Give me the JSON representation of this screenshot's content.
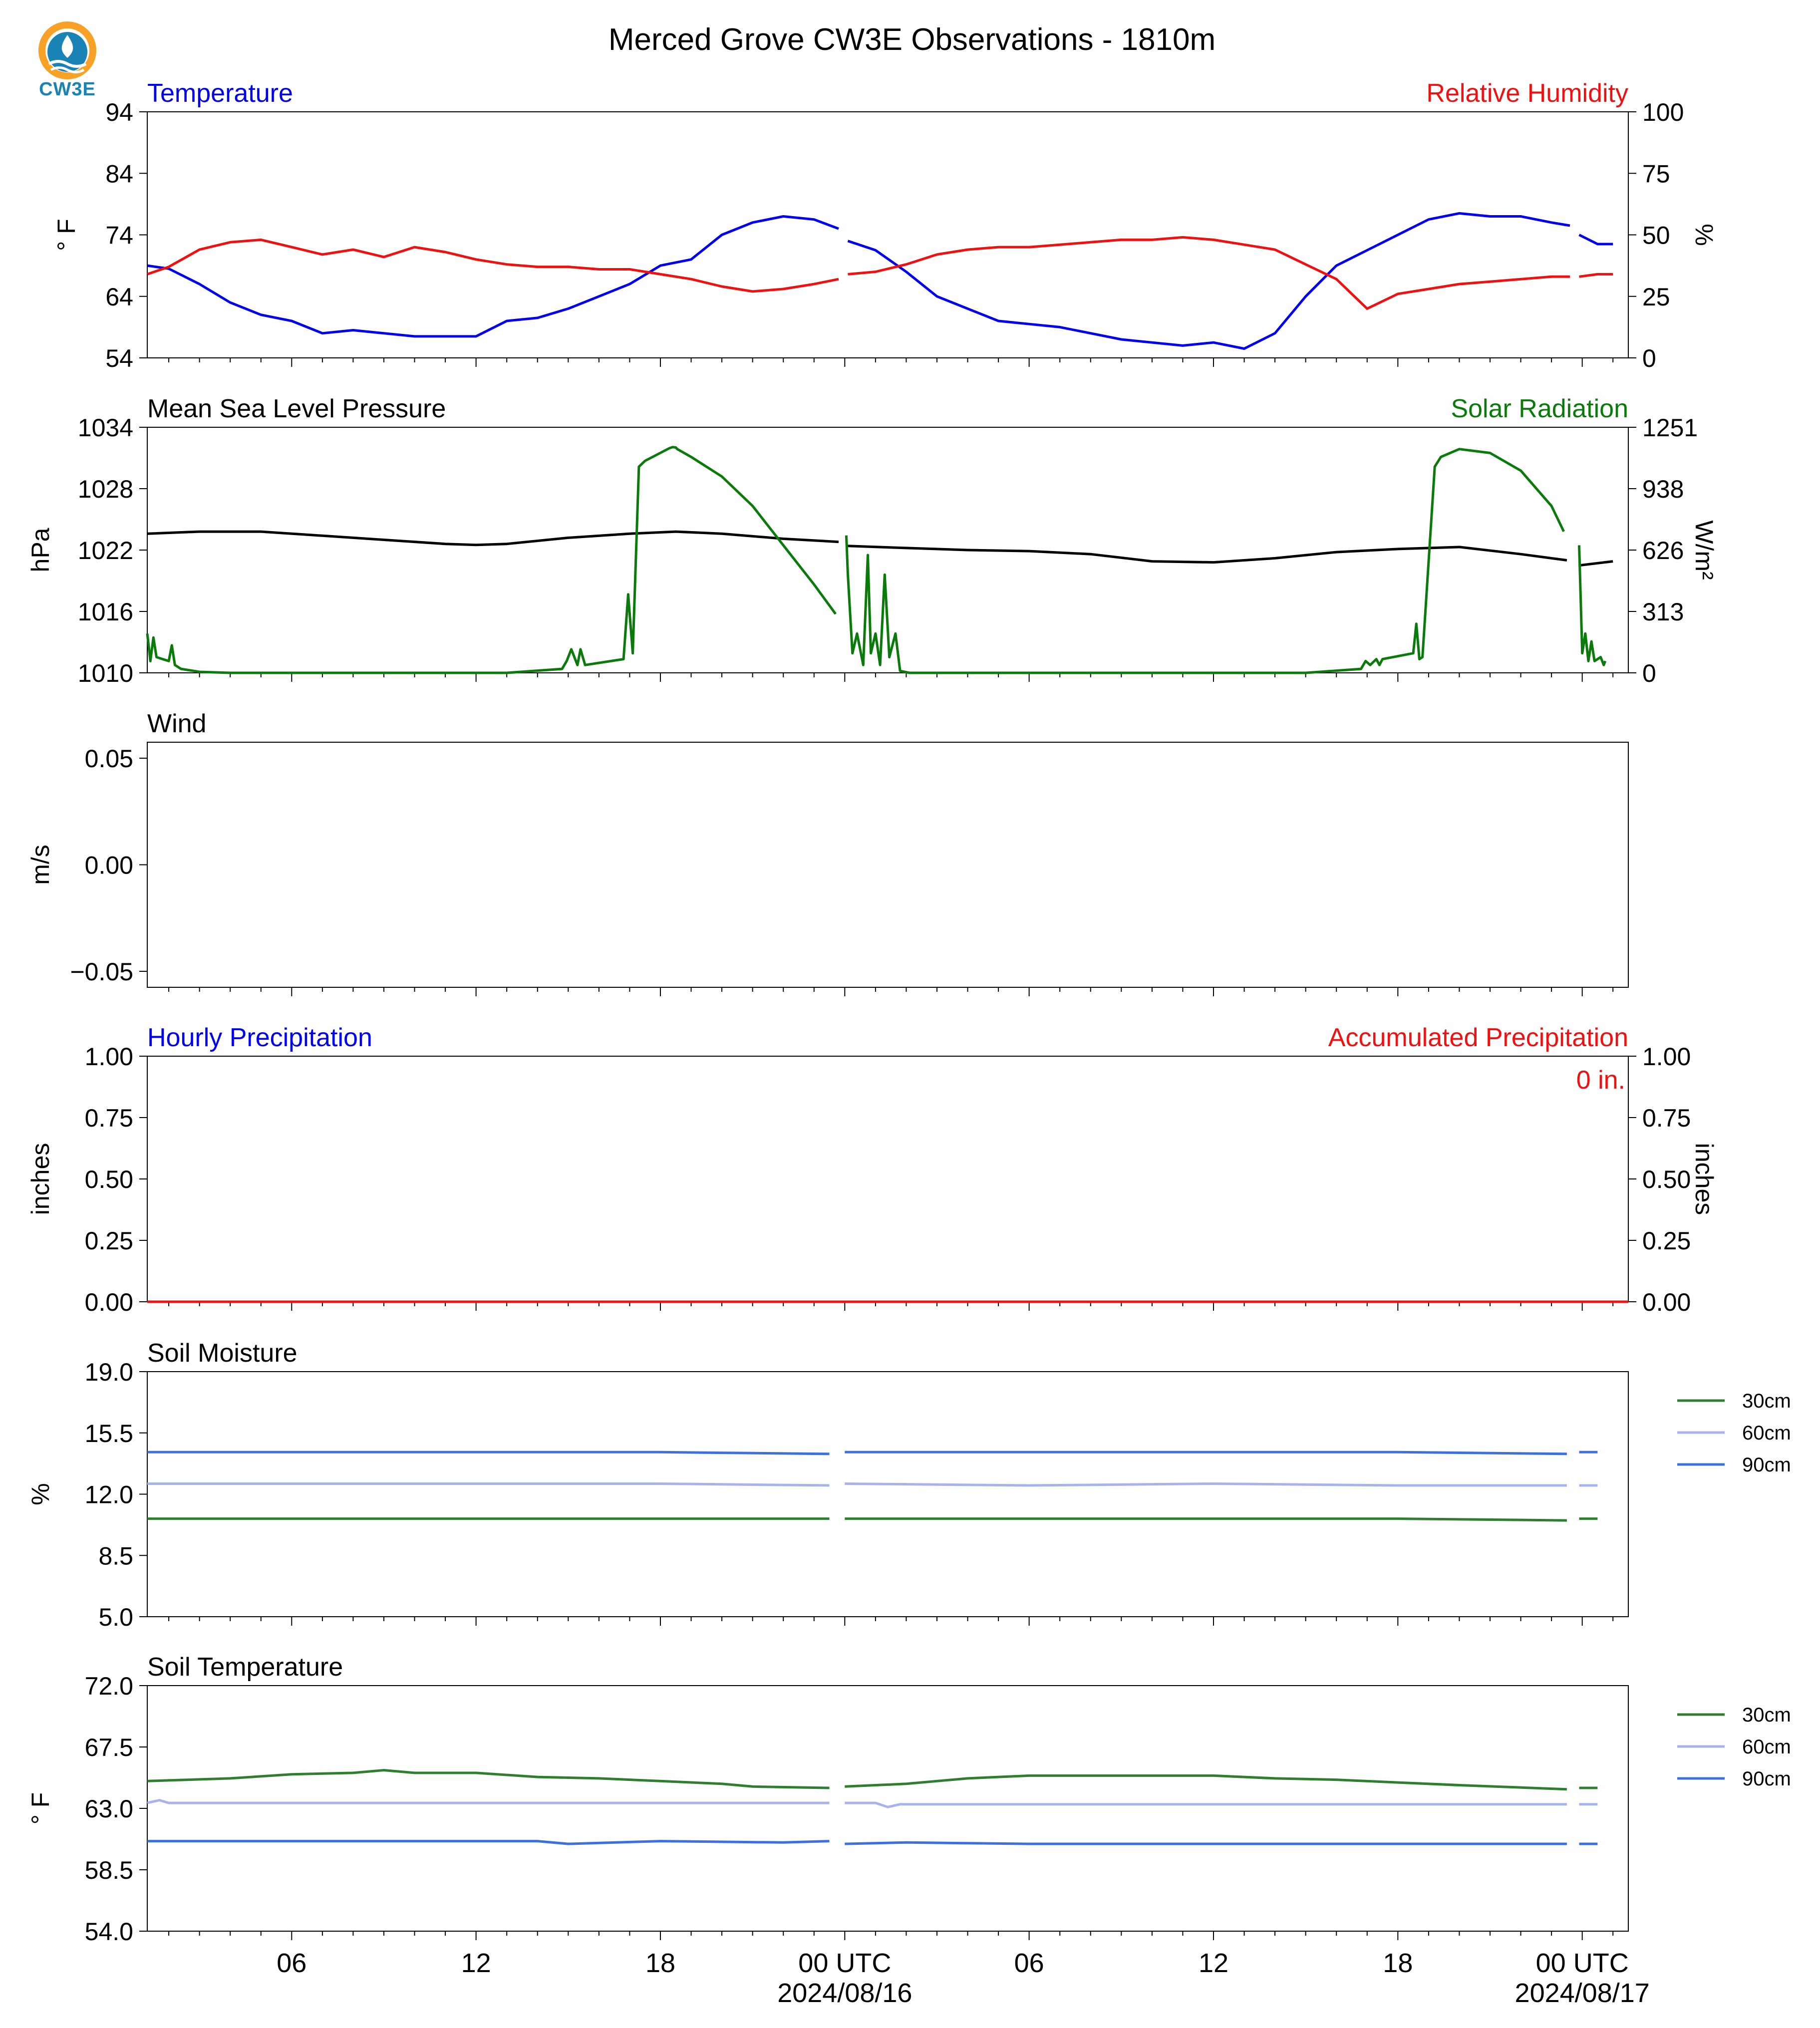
{
  "title": "Merced Grove CW3E Observations - 1810m",
  "logo_text": "CW3E",
  "colors": {
    "temperature": "#0000ee",
    "humidity": "#ee1111",
    "pressure": "#000000",
    "solar": "#0a7a0a",
    "soil_30": "#2f7d2f",
    "soil_60": "#a8b3ec",
    "soil_90": "#3c6fe0",
    "accum": "#ee1111"
  },
  "x_axis": {
    "hours_range": [
      -4.7,
      43.5
    ],
    "tick_labels": [
      {
        "hour": 0,
        "label": "06"
      },
      {
        "hour": 6,
        "label": "12"
      },
      {
        "hour": 12,
        "label": "18"
      },
      {
        "hour": 18,
        "label": "00 UTC",
        "date": "2024/08/16"
      },
      {
        "hour": 24,
        "label": "06"
      },
      {
        "hour": 30,
        "label": "12"
      },
      {
        "hour": 36,
        "label": "18"
      },
      {
        "hour": 42,
        "label": "00 UTC",
        "date": "2024/08/17"
      }
    ]
  },
  "chart_data": [
    {
      "id": "temp_rh",
      "type": "line",
      "title_left": "Temperature",
      "title_right": "Relative Humidity",
      "ylabel_left": "° F",
      "ylabel_right": "%",
      "ylim_left": [
        54,
        94
      ],
      "ylim_right": [
        0,
        100
      ],
      "yticks_left": [
        "54",
        "64",
        "74",
        "84",
        "94"
      ],
      "yticks_right": [
        "0",
        "25",
        "50",
        "75",
        "100"
      ],
      "series": [
        {
          "name": "Temperature",
          "axis": "left",
          "color_key": "temperature",
          "x": [
            -4.7,
            -4,
            -3,
            -2,
            -1,
            0,
            1,
            2,
            3,
            4,
            5,
            6,
            7,
            8,
            9,
            10,
            11,
            12,
            13,
            14,
            15,
            16,
            17,
            17.8,
            null,
            18.1,
            19,
            20,
            21,
            22,
            23,
            24,
            25,
            26,
            27,
            28,
            29,
            30,
            31,
            32,
            33,
            34,
            35,
            36,
            37,
            38,
            39,
            40,
            41,
            41.6,
            null,
            41.9,
            42.5,
            43
          ],
          "y": [
            69,
            68.5,
            66,
            63,
            61,
            60,
            58,
            58.5,
            58,
            57.5,
            57.5,
            57.5,
            60,
            60.5,
            62,
            64,
            66,
            69,
            70,
            74,
            76,
            77,
            76.5,
            75,
            null,
            73,
            71.5,
            68,
            64,
            62,
            60,
            59.5,
            59,
            58,
            57,
            56.5,
            56,
            56.5,
            55.5,
            58,
            64,
            69,
            71.5,
            74,
            76.5,
            77.5,
            77,
            77,
            76,
            75.5,
            null,
            74,
            72.5,
            72.5
          ]
        },
        {
          "name": "Relative Humidity",
          "axis": "right",
          "color_key": "humidity",
          "x": [
            -4.7,
            -4,
            -3,
            -2,
            -1,
            0,
            1,
            2,
            3,
            4,
            5,
            6,
            7,
            8,
            9,
            10,
            11,
            12,
            13,
            14,
            15,
            16,
            17,
            17.8,
            null,
            18.1,
            19,
            20,
            21,
            22,
            23,
            24,
            25,
            26,
            27,
            28,
            29,
            30,
            31,
            32,
            33,
            34,
            35,
            36,
            37,
            38,
            39,
            40,
            41,
            41.6,
            null,
            41.9,
            42.5,
            43
          ],
          "y": [
            34,
            37,
            44,
            47,
            48,
            45,
            42,
            44,
            41,
            45,
            43,
            40,
            38,
            37,
            37,
            36,
            36,
            34,
            32,
            29,
            27,
            28,
            30,
            32,
            null,
            34,
            35,
            38,
            42,
            44,
            45,
            45,
            46,
            47,
            48,
            48,
            49,
            48,
            46,
            44,
            38,
            32,
            20,
            26,
            28,
            30,
            31,
            32,
            33,
            33,
            null,
            33,
            34,
            34
          ]
        }
      ]
    },
    {
      "id": "pressure_solar",
      "type": "line",
      "title_left": "Mean Sea Level Pressure",
      "title_right": "Solar Radiation",
      "ylabel_left": "hPa",
      "ylabel_right": "W/m²",
      "ylim_left": [
        1010,
        1034
      ],
      "ylim_right": [
        0,
        1251
      ],
      "yticks_left": [
        "1010",
        "1016",
        "1022",
        "1028",
        "1034"
      ],
      "yticks_right": [
        "0",
        "313",
        "626",
        "938",
        "1251"
      ],
      "series": [
        {
          "name": "Mean Sea Level Pressure",
          "axis": "left",
          "color_key": "pressure",
          "x": [
            -4.7,
            -3,
            -1,
            1,
            3,
            5,
            6,
            7,
            9,
            11,
            12.5,
            14,
            16,
            17.8,
            null,
            18.1,
            20,
            22,
            24,
            26,
            28,
            30,
            32,
            34,
            36,
            38,
            40,
            41.5,
            null,
            41.9,
            43
          ],
          "y": [
            1023.6,
            1023.8,
            1023.8,
            1023.4,
            1023,
            1022.6,
            1022.5,
            1022.6,
            1023.2,
            1023.6,
            1023.8,
            1023.6,
            1023.1,
            1022.8,
            null,
            1022.4,
            1022.2,
            1022.0,
            1021.9,
            1021.6,
            1020.9,
            1020.8,
            1021.2,
            1021.8,
            1022.1,
            1022.3,
            1021.6,
            1021.0,
            null,
            1020.5,
            1020.9
          ]
        },
        {
          "name": "Solar Radiation",
          "axis": "right",
          "color_key": "solar",
          "x": [
            -4.7,
            -4.6,
            -4.5,
            -4.4,
            -4.2,
            -4.0,
            -3.9,
            -3.8,
            -3.6,
            -3.0,
            -2,
            0,
            4,
            7,
            8.8,
            8.95,
            9.1,
            9.3,
            9.4,
            9.55,
            10.8,
            10.95,
            11.1,
            11.3,
            11.5,
            12.3,
            12.4,
            12.5,
            12.55,
            13,
            14,
            15,
            16,
            17,
            17.7,
            null,
            18.05,
            18.1,
            18.25,
            18.4,
            18.6,
            18.75,
            18.85,
            19.0,
            19.15,
            19.3,
            19.45,
            19.65,
            19.8,
            20.1,
            20.5,
            22,
            26,
            30,
            33,
            34.8,
            34.95,
            35.1,
            35.3,
            35.4,
            35.5,
            36.5,
            36.6,
            36.7,
            36.8,
            37.2,
            37.4,
            38,
            39,
            40,
            41,
            41.4,
            null,
            41.9,
            42.0,
            42.1,
            42.2,
            42.3,
            42.4,
            42.6,
            42.7,
            42.75
          ],
          "y": [
            200,
            60,
            180,
            80,
            70,
            60,
            140,
            40,
            20,
            5,
            0,
            0,
            0,
            0,
            20,
            60,
            120,
            40,
            120,
            40,
            70,
            400,
            100,
            1050,
            1080,
            1145,
            1150,
            1148,
            1140,
            1100,
            1000,
            850,
            650,
            450,
            300,
            null,
            700,
            500,
            100,
            200,
            40,
            600,
            100,
            200,
            40,
            500,
            80,
            200,
            10,
            0,
            0,
            0,
            0,
            0,
            0,
            20,
            60,
            40,
            70,
            40,
            70,
            100,
            250,
            70,
            80,
            1050,
            1100,
            1140,
            1120,
            1030,
            850,
            720,
            null,
            650,
            100,
            200,
            60,
            160,
            60,
            80,
            40,
            60
          ]
        }
      ]
    },
    {
      "id": "wind",
      "type": "line",
      "title_left": "Wind",
      "ylabel_left": "m/s",
      "ylim_left": [
        -0.0575,
        0.0575
      ],
      "yticks_left": [
        {
          "value": -0.05,
          "label": "−0.05"
        },
        {
          "value": 0,
          "label": "0.00"
        },
        {
          "value": 0.05,
          "label": "0.05"
        }
      ],
      "series": []
    },
    {
      "id": "precip",
      "type": "line",
      "title_left": "Hourly Precipitation",
      "title_right": "Accumulated Precipitation",
      "ylabel_left": "inches",
      "ylabel_right": "inches",
      "ylim_left": [
        0,
        1
      ],
      "ylim_right": [
        0,
        1
      ],
      "yticks_left": [
        "0.00",
        "0.25",
        "0.50",
        "0.75",
        "1.00"
      ],
      "yticks_right": [
        "0.00",
        "0.25",
        "0.50",
        "0.75",
        "1.00"
      ],
      "annotation": "0 in.",
      "series": [
        {
          "name": "Hourly Precipitation",
          "axis": "left",
          "color_key": "temperature",
          "x": [
            -4.7,
            43.5
          ],
          "y": [
            0,
            0
          ]
        },
        {
          "name": "Accumulated Precipitation",
          "axis": "right",
          "color_key": "accum",
          "x": [
            -4.7,
            43.5
          ],
          "y": [
            0,
            0
          ]
        }
      ]
    },
    {
      "id": "soil_moisture",
      "type": "line",
      "title_left": "Soil Moisture",
      "ylabel_left": "%",
      "ylim_left": [
        5,
        19
      ],
      "yticks_left": [
        "5.0",
        "8.5",
        "12.0",
        "15.5",
        "19.0"
      ],
      "legend": [
        "30cm",
        "60cm",
        "90cm"
      ],
      "series": [
        {
          "name": "30cm",
          "color_key": "soil_30",
          "x": [
            -4.7,
            0,
            6,
            12,
            17.5,
            null,
            18,
            24,
            30,
            36,
            41.5,
            null,
            41.9,
            42.5
          ],
          "y": [
            10.6,
            10.6,
            10.6,
            10.6,
            10.6,
            null,
            10.6,
            10.6,
            10.6,
            10.6,
            10.5,
            null,
            10.6,
            10.6
          ]
        },
        {
          "name": "60cm",
          "color_key": "soil_60",
          "x": [
            -4.7,
            0,
            6,
            12,
            17.5,
            null,
            18,
            24,
            30,
            36,
            41.5,
            null,
            41.9,
            42.5
          ],
          "y": [
            12.6,
            12.6,
            12.6,
            12.6,
            12.5,
            null,
            12.6,
            12.5,
            12.6,
            12.5,
            12.5,
            null,
            12.5,
            12.5
          ]
        },
        {
          "name": "90cm",
          "color_key": "soil_90",
          "x": [
            -4.7,
            0,
            6,
            12,
            17.5,
            null,
            18,
            24,
            30,
            36,
            41.5,
            null,
            41.9,
            42.5
          ],
          "y": [
            14.4,
            14.4,
            14.4,
            14.4,
            14.3,
            null,
            14.4,
            14.4,
            14.4,
            14.4,
            14.3,
            null,
            14.4,
            14.4
          ]
        }
      ]
    },
    {
      "id": "soil_temp",
      "type": "line",
      "title_left": "Soil Temperature",
      "ylabel_left": "° F",
      "ylim_left": [
        54,
        72
      ],
      "yticks_left": [
        "54.0",
        "58.5",
        "63.0",
        "67.5",
        "72.0"
      ],
      "legend": [
        "30cm",
        "60cm",
        "90cm"
      ],
      "series": [
        {
          "name": "30cm",
          "color_key": "soil_30",
          "x": [
            -4.7,
            -2,
            0,
            2,
            3,
            4,
            6,
            8,
            10,
            12,
            14,
            15,
            17.5,
            null,
            18,
            20,
            22,
            24,
            26,
            28,
            30,
            32,
            34,
            36,
            38,
            41.5,
            null,
            41.9,
            42.5
          ],
          "y": [
            65.0,
            65.2,
            65.5,
            65.6,
            65.8,
            65.6,
            65.6,
            65.3,
            65.2,
            65.0,
            64.8,
            64.6,
            64.5,
            null,
            64.6,
            64.8,
            65.2,
            65.4,
            65.4,
            65.4,
            65.4,
            65.2,
            65.1,
            64.9,
            64.7,
            64.4,
            null,
            64.5,
            64.5
          ]
        },
        {
          "name": "60cm",
          "color_key": "soil_60",
          "x": [
            -4.7,
            -4.3,
            -4.0,
            0,
            6,
            12,
            17.5,
            null,
            18,
            19,
            19.4,
            19.8,
            24,
            30,
            36,
            41.5,
            null,
            41.9,
            42.5
          ],
          "y": [
            63.4,
            63.6,
            63.4,
            63.4,
            63.4,
            63.4,
            63.4,
            null,
            63.4,
            63.4,
            63.1,
            63.3,
            63.3,
            63.3,
            63.3,
            63.3,
            null,
            63.3,
            63.3
          ]
        },
        {
          "name": "90cm",
          "color_key": "soil_90",
          "x": [
            -4.7,
            0,
            6,
            8,
            9,
            12,
            16,
            17.5,
            null,
            18,
            20,
            24,
            30,
            36,
            41.5,
            null,
            41.9,
            42.5
          ],
          "y": [
            60.6,
            60.6,
            60.6,
            60.6,
            60.4,
            60.6,
            60.5,
            60.6,
            null,
            60.4,
            60.5,
            60.4,
            60.4,
            60.4,
            60.4,
            null,
            60.4,
            60.4
          ]
        }
      ]
    }
  ]
}
